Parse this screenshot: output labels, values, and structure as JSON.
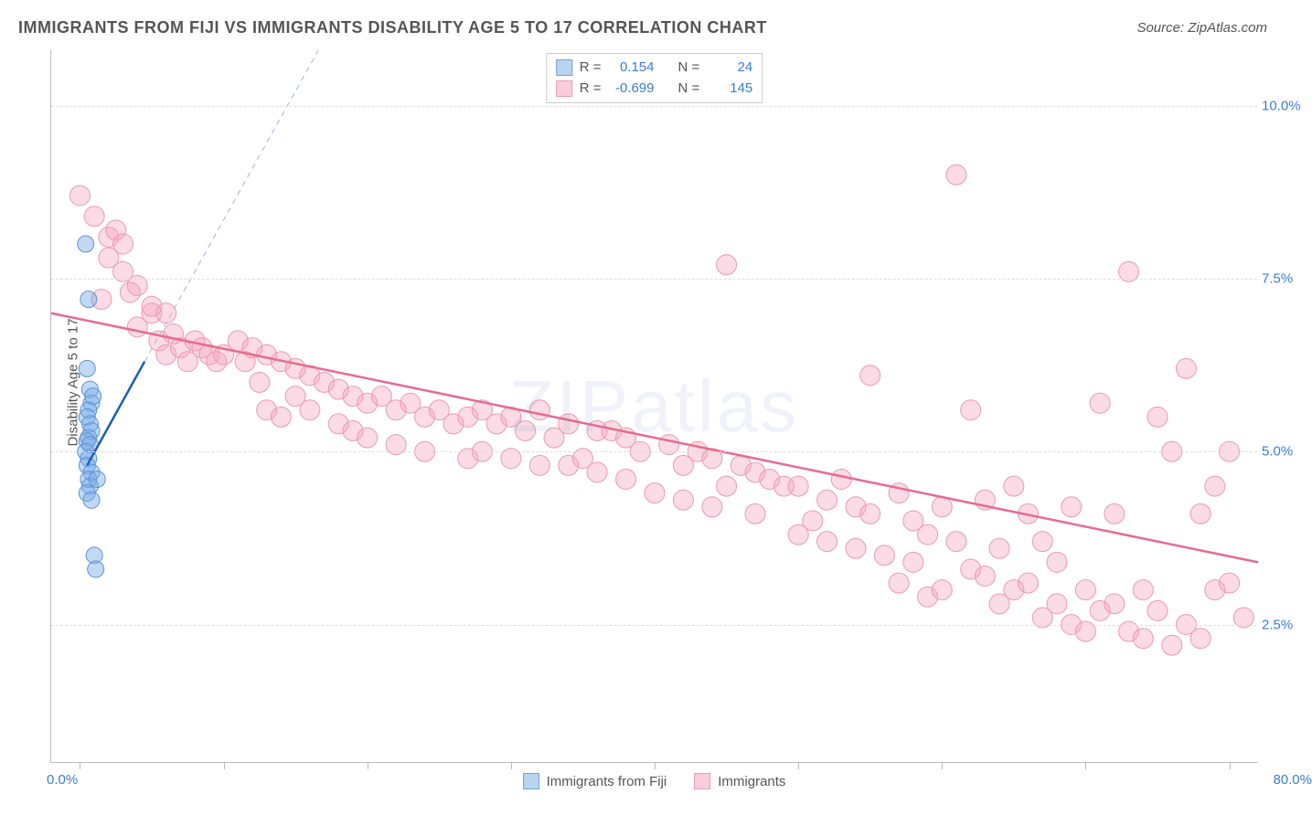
{
  "header": {
    "title": "IMMIGRANTS FROM FIJI VS IMMIGRANTS DISABILITY AGE 5 TO 17 CORRELATION CHART",
    "source": "Source: ZipAtlas.com"
  },
  "watermark": "ZIPatlas",
  "chart": {
    "type": "scatter",
    "ylabel": "Disability Age 5 to 17",
    "xlim": [
      -2,
      82
    ],
    "ylim": [
      0.5,
      10.8
    ],
    "xlim_labels": {
      "min": "0.0%",
      "max": "80.0%"
    },
    "ytick_values": [
      2.5,
      5.0,
      7.5,
      10.0
    ],
    "ytick_labels": [
      "2.5%",
      "5.0%",
      "7.5%",
      "10.0%"
    ],
    "xtick_values": [
      0,
      10,
      20,
      30,
      40,
      50,
      60,
      70,
      80
    ],
    "background_color": "#ffffff",
    "grid_color": "#dddddd",
    "axis_color": "#bbbbbb"
  },
  "series": {
    "fiji": {
      "label": "Immigrants from Fiji",
      "color_fill": "rgba(120,170,230,0.45)",
      "color_stroke": "#5b94d6",
      "swatch_fill": "#b9d4f0",
      "swatch_border": "#6fa3dd",
      "marker_radius": 9,
      "trend": {
        "x1": 0.5,
        "y1": 4.8,
        "x2": 4.5,
        "y2": 6.3,
        "color": "#1b5fb8",
        "width": 2.5
      },
      "trend_ext": {
        "x1": 4.5,
        "y1": 6.3,
        "x2": 26,
        "y2": 14.3,
        "color": "#9bb8d8",
        "width": 1,
        "dash": "6,5"
      },
      "stats": {
        "R": "0.154",
        "N": "24"
      },
      "points": [
        [
          0.4,
          8.0
        ],
        [
          0.6,
          7.2
        ],
        [
          0.5,
          6.2
        ],
        [
          0.7,
          5.9
        ],
        [
          0.8,
          5.7
        ],
        [
          0.6,
          5.6
        ],
        [
          0.5,
          5.5
        ],
        [
          0.7,
          5.4
        ],
        [
          0.8,
          5.3
        ],
        [
          0.6,
          5.2
        ],
        [
          0.5,
          5.15
        ],
        [
          0.7,
          5.1
        ],
        [
          0.4,
          5.0
        ],
        [
          0.6,
          4.9
        ],
        [
          0.5,
          4.8
        ],
        [
          0.8,
          4.7
        ],
        [
          0.6,
          4.6
        ],
        [
          0.7,
          4.5
        ],
        [
          0.5,
          4.4
        ],
        [
          0.8,
          4.3
        ],
        [
          1.0,
          3.5
        ],
        [
          1.1,
          3.3
        ],
        [
          1.2,
          4.6
        ],
        [
          0.9,
          5.8
        ]
      ]
    },
    "immigrants": {
      "label": "Immigrants",
      "color_fill": "rgba(245,165,190,0.40)",
      "color_stroke": "#ea9ab2",
      "swatch_fill": "#f7cdd9",
      "swatch_border": "#ec9db4",
      "marker_radius": 11,
      "trend": {
        "x1": -2,
        "y1": 7.0,
        "x2": 82,
        "y2": 3.4,
        "color": "#e76b8f",
        "width": 2.5
      },
      "stats": {
        "R": "-0.699",
        "N": "145"
      },
      "points": [
        [
          0,
          8.7
        ],
        [
          1,
          8.4
        ],
        [
          2,
          8.1
        ],
        [
          2.5,
          8.2
        ],
        [
          1.5,
          7.2
        ],
        [
          3,
          8.0
        ],
        [
          3.5,
          7.3
        ],
        [
          4,
          6.8
        ],
        [
          5,
          7.0
        ],
        [
          5.5,
          6.6
        ],
        [
          6,
          6.4
        ],
        [
          6.5,
          6.7
        ],
        [
          7,
          6.5
        ],
        [
          7.5,
          6.3
        ],
        [
          8,
          6.6
        ],
        [
          8.5,
          6.5
        ],
        [
          9,
          6.4
        ],
        [
          9.5,
          6.3
        ],
        [
          10,
          6.4
        ],
        [
          11,
          6.6
        ],
        [
          11.5,
          6.3
        ],
        [
          12,
          6.5
        ],
        [
          12.5,
          6.0
        ],
        [
          13,
          6.4
        ],
        [
          13,
          5.6
        ],
        [
          14,
          6.3
        ],
        [
          14,
          5.5
        ],
        [
          15,
          6.2
        ],
        [
          15,
          5.8
        ],
        [
          16,
          6.1
        ],
        [
          16,
          5.6
        ],
        [
          17,
          6.0
        ],
        [
          18,
          5.9
        ],
        [
          18,
          5.4
        ],
        [
          19,
          5.8
        ],
        [
          19,
          5.3
        ],
        [
          20,
          5.7
        ],
        [
          20,
          5.2
        ],
        [
          21,
          5.8
        ],
        [
          22,
          5.6
        ],
        [
          22,
          5.1
        ],
        [
          23,
          5.7
        ],
        [
          24,
          5.5
        ],
        [
          24,
          5.0
        ],
        [
          25,
          5.6
        ],
        [
          26,
          5.4
        ],
        [
          27,
          5.5
        ],
        [
          27,
          4.9
        ],
        [
          28,
          5.6
        ],
        [
          28,
          5.0
        ],
        [
          29,
          5.4
        ],
        [
          30,
          5.5
        ],
        [
          30,
          4.9
        ],
        [
          31,
          5.3
        ],
        [
          32,
          5.6
        ],
        [
          32,
          4.8
        ],
        [
          33,
          5.2
        ],
        [
          34,
          5.4
        ],
        [
          34,
          4.8
        ],
        [
          35,
          4.9
        ],
        [
          36,
          5.3
        ],
        [
          36,
          4.7
        ],
        [
          37,
          5.3
        ],
        [
          38,
          5.2
        ],
        [
          38,
          4.6
        ],
        [
          39,
          5.0
        ],
        [
          40,
          4.4
        ],
        [
          41,
          5.1
        ],
        [
          42,
          4.8
        ],
        [
          42,
          4.3
        ],
        [
          43,
          5.0
        ],
        [
          44,
          4.9
        ],
        [
          44,
          4.2
        ],
        [
          45,
          4.5
        ],
        [
          45,
          7.7
        ],
        [
          46,
          4.8
        ],
        [
          47,
          4.7
        ],
        [
          47,
          4.1
        ],
        [
          48,
          4.6
        ],
        [
          49,
          4.5
        ],
        [
          50,
          4.5
        ],
        [
          50,
          3.8
        ],
        [
          51,
          4.0
        ],
        [
          52,
          4.3
        ],
        [
          52,
          3.7
        ],
        [
          53,
          4.6
        ],
        [
          54,
          4.2
        ],
        [
          54,
          3.6
        ],
        [
          55,
          4.1
        ],
        [
          55,
          6.1
        ],
        [
          56,
          3.5
        ],
        [
          57,
          4.4
        ],
        [
          57,
          3.1
        ],
        [
          58,
          4.0
        ],
        [
          58,
          3.4
        ],
        [
          59,
          3.8
        ],
        [
          59,
          2.9
        ],
        [
          60,
          4.2
        ],
        [
          60,
          3.0
        ],
        [
          61,
          3.7
        ],
        [
          61,
          9.0
        ],
        [
          62,
          3.3
        ],
        [
          62,
          5.6
        ],
        [
          63,
          3.2
        ],
        [
          63,
          4.3
        ],
        [
          64,
          3.6
        ],
        [
          64,
          2.8
        ],
        [
          65,
          4.5
        ],
        [
          65,
          3.0
        ],
        [
          66,
          3.1
        ],
        [
          66,
          4.1
        ],
        [
          67,
          2.6
        ],
        [
          67,
          3.7
        ],
        [
          68,
          2.8
        ],
        [
          68,
          3.4
        ],
        [
          69,
          2.5
        ],
        [
          69,
          4.2
        ],
        [
          70,
          3.0
        ],
        [
          70,
          2.4
        ],
        [
          71,
          2.7
        ],
        [
          71,
          5.7
        ],
        [
          72,
          2.8
        ],
        [
          72,
          4.1
        ],
        [
          73,
          2.4
        ],
        [
          73,
          7.6
        ],
        [
          74,
          3.0
        ],
        [
          74,
          2.3
        ],
        [
          75,
          5.5
        ],
        [
          75,
          2.7
        ],
        [
          76,
          5.0
        ],
        [
          76,
          2.2
        ],
        [
          77,
          2.5
        ],
        [
          77,
          6.2
        ],
        [
          78,
          4.1
        ],
        [
          78,
          2.3
        ],
        [
          79,
          3.0
        ],
        [
          79,
          4.5
        ],
        [
          80,
          3.1
        ],
        [
          80,
          5.0
        ],
        [
          81,
          2.6
        ],
        [
          2,
          7.8
        ],
        [
          3,
          7.6
        ],
        [
          4,
          7.4
        ],
        [
          5,
          7.1
        ],
        [
          6,
          7.0
        ]
      ]
    }
  },
  "legend_top": {
    "R_label": "R =",
    "N_label": "N ="
  }
}
